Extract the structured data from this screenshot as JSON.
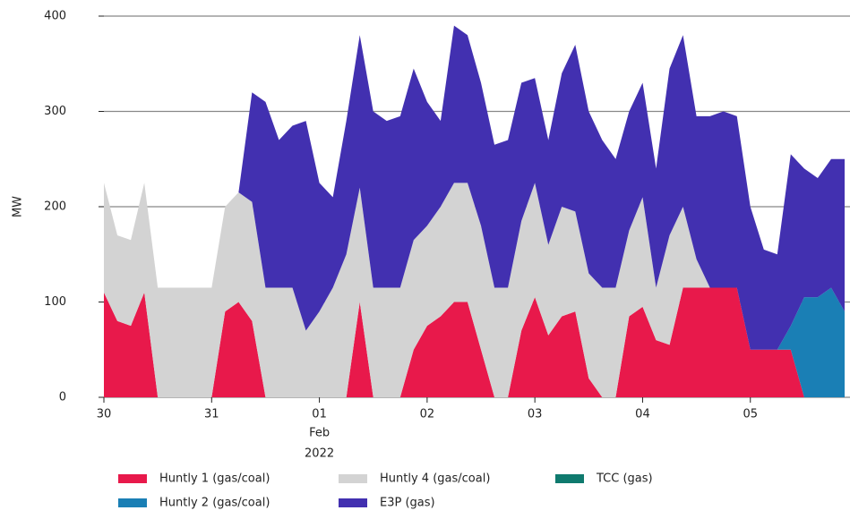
{
  "chart_data": {
    "type": "stacked_area",
    "y_label": "MW",
    "x": [
      0,
      0.125,
      0.25,
      0.375,
      0.5,
      0.625,
      0.75,
      0.875,
      1,
      1.125,
      1.25,
      1.375,
      1.5,
      1.625,
      1.75,
      1.875,
      2,
      2.125,
      2.25,
      2.375,
      2.5,
      2.625,
      2.75,
      2.875,
      3,
      3.125,
      3.25,
      3.375,
      3.5,
      3.625,
      3.75,
      3.875,
      4,
      4.125,
      4.25,
      4.375,
      4.5,
      4.625,
      4.75,
      4.875,
      5,
      5.125,
      5.25,
      5.375,
      5.5,
      5.625,
      5.75,
      5.875,
      6,
      6.125,
      6.25,
      6.375,
      6.5,
      6.625,
      6.75,
      6.875
    ],
    "xlim": [
      0,
      6.875
    ],
    "xticks": [
      {
        "value": 0,
        "label": "30"
      },
      {
        "value": 1,
        "label": "31"
      },
      {
        "value": 2,
        "label": "01"
      },
      {
        "value": 3,
        "label": "02"
      },
      {
        "value": 4,
        "label": "03"
      },
      {
        "value": 5,
        "label": "04"
      },
      {
        "value": 6,
        "label": "05"
      }
    ],
    "x_month": "Feb",
    "x_year": "2022",
    "ylim": [
      0,
      400
    ],
    "yticks": [
      0,
      100,
      200,
      300,
      400
    ],
    "grid": true,
    "series": [
      {
        "name": "Huntly 1 (gas/coal)",
        "color": "#e8194b",
        "values": [
          110,
          80,
          75,
          110,
          0,
          0,
          0,
          0,
          0,
          90,
          100,
          80,
          0,
          0,
          0,
          0,
          0,
          0,
          0,
          100,
          0,
          0,
          0,
          50,
          75,
          85,
          100,
          100,
          50,
          0,
          0,
          70,
          105,
          65,
          85,
          90,
          20,
          0,
          0,
          85,
          95,
          60,
          55,
          115,
          115,
          115,
          115,
          115,
          50,
          50,
          50,
          50,
          0,
          0,
          0,
          0
        ]
      },
      {
        "name": "Huntly 2 (gas/coal)",
        "color": "#1a7fb5",
        "values": [
          0,
          0,
          0,
          0,
          0,
          0,
          0,
          0,
          0,
          0,
          0,
          0,
          0,
          0,
          0,
          0,
          0,
          0,
          0,
          0,
          0,
          0,
          0,
          0,
          0,
          0,
          0,
          0,
          0,
          0,
          0,
          0,
          0,
          0,
          0,
          0,
          0,
          0,
          0,
          0,
          0,
          0,
          0,
          0,
          0,
          0,
          0,
          0,
          0,
          0,
          0,
          25,
          105,
          105,
          115,
          90
        ]
      },
      {
        "name": "Huntly 4 (gas/coal)",
        "color": "#d3d3d3",
        "values": [
          115,
          90,
          90,
          115,
          115,
          115,
          115,
          115,
          115,
          110,
          115,
          125,
          115,
          115,
          115,
          70,
          90,
          115,
          150,
          120,
          115,
          115,
          115,
          115,
          105,
          115,
          125,
          125,
          130,
          115,
          115,
          115,
          120,
          95,
          115,
          105,
          110,
          115,
          115,
          90,
          115,
          55,
          115,
          85,
          30,
          0,
          0,
          0,
          0,
          0,
          0,
          0,
          0,
          0,
          0,
          0
        ]
      },
      {
        "name": "E3P (gas)",
        "color": "#4230b0",
        "values": [
          0,
          0,
          0,
          0,
          0,
          0,
          0,
          0,
          0,
          0,
          0,
          115,
          195,
          155,
          170,
          220,
          135,
          95,
          140,
          160,
          185,
          175,
          180,
          180,
          130,
          90,
          165,
          155,
          150,
          150,
          155,
          145,
          110,
          110,
          140,
          175,
          170,
          155,
          135,
          125,
          120,
          125,
          175,
          180,
          150,
          180,
          185,
          180,
          150,
          105,
          100,
          180,
          135,
          125,
          135,
          160
        ]
      },
      {
        "name": "TCC (gas)",
        "color": "#0f7a6e",
        "values": [
          0,
          0,
          0,
          0,
          0,
          0,
          0,
          0,
          0,
          0,
          0,
          0,
          0,
          0,
          0,
          0,
          0,
          0,
          0,
          0,
          0,
          0,
          0,
          0,
          0,
          0,
          0,
          0,
          0,
          0,
          0,
          0,
          0,
          0,
          0,
          0,
          0,
          0,
          0,
          0,
          0,
          0,
          0,
          0,
          0,
          0,
          0,
          0,
          0,
          0,
          0,
          0,
          0,
          0,
          0,
          0
        ]
      }
    ]
  }
}
